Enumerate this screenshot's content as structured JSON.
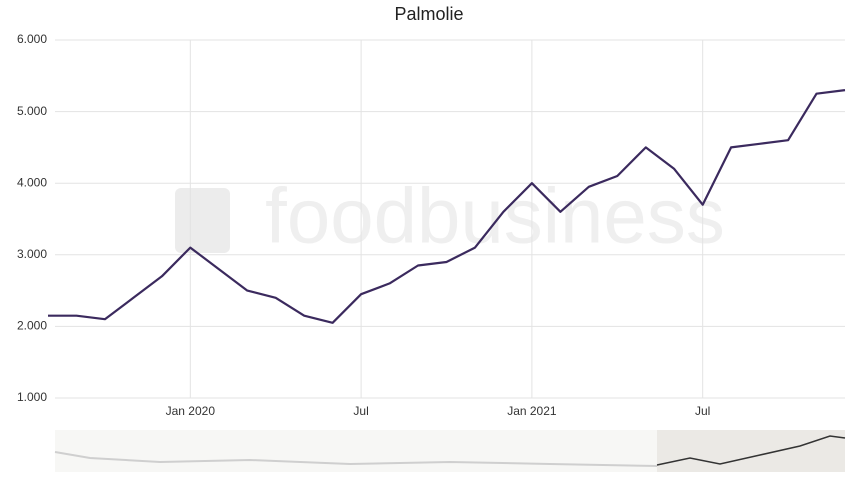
{
  "chart_data": {
    "type": "line",
    "title": "Palmolie",
    "watermark": "foodbusiness",
    "x": [
      "2019-08",
      "2019-09",
      "2019-10",
      "2019-11",
      "2019-12",
      "2020-01",
      "2020-02",
      "2020-03",
      "2020-04",
      "2020-05",
      "2020-06",
      "2020-07",
      "2020-08",
      "2020-09",
      "2020-10",
      "2020-11",
      "2020-12",
      "2021-01",
      "2021-02",
      "2021-03",
      "2021-04",
      "2021-05",
      "2021-06",
      "2021-07",
      "2021-08",
      "2021-09",
      "2021-10",
      "2021-11",
      "2021-12"
    ],
    "series": [
      {
        "name": "Palmolie",
        "color": "#3b2a5e",
        "values": [
          2150,
          2150,
          2100,
          2400,
          2700,
          3100,
          2800,
          2500,
          2400,
          2150,
          2050,
          2450,
          2600,
          2850,
          2900,
          3100,
          3600,
          4000,
          3600,
          3950,
          4100,
          4500,
          4200,
          3700,
          4500,
          4550,
          4600,
          5250,
          5300
        ]
      }
    ],
    "xlim": [
      "2019-08",
      "2021-12"
    ],
    "xticks": [
      {
        "value": "2020-01",
        "label": "Jan 2020"
      },
      {
        "value": "2020-07",
        "label": "Jul"
      },
      {
        "value": "2021-01",
        "label": "Jan 2021"
      },
      {
        "value": "2021-07",
        "label": "Jul"
      }
    ],
    "ylim": [
      1000,
      6000
    ],
    "yticks": [
      {
        "value": 1000,
        "label": "1.000"
      },
      {
        "value": 2000,
        "label": "2.000"
      },
      {
        "value": 3000,
        "label": "3.000"
      },
      {
        "value": 4000,
        "label": "4.000"
      },
      {
        "value": 5000,
        "label": "5.000"
      },
      {
        "value": 6000,
        "label": "6.000"
      }
    ],
    "grid": true
  }
}
